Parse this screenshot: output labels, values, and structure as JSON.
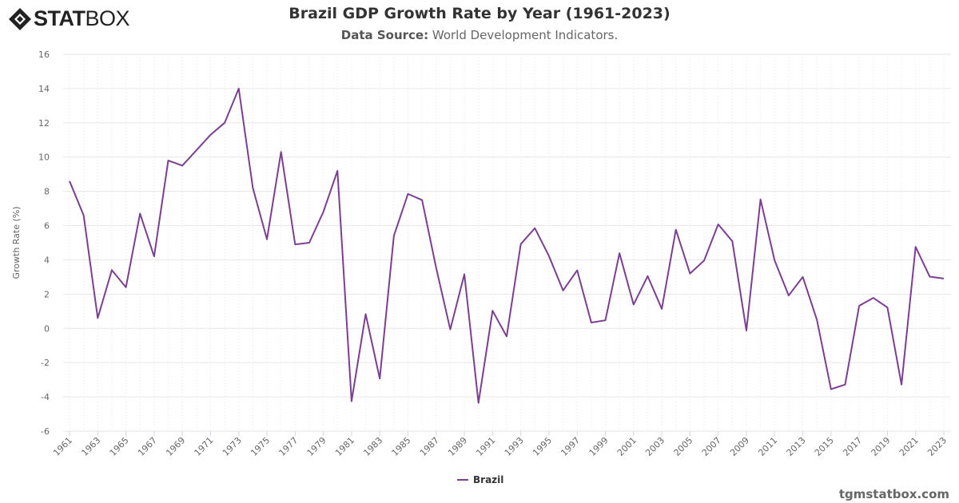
{
  "logo": {
    "text_bold": "STAT",
    "text_light": "BOX"
  },
  "title": "Brazil GDP Growth Rate by Year (1961-2023)",
  "subtitle_label": "Data Source:",
  "subtitle_value": "World Development Indicators.",
  "footer": "tgmstatbox.com",
  "colors": {
    "series": "#7b3f91",
    "grid": "#e6e6e6"
  },
  "chart_data": {
    "type": "line",
    "title": "Brazil GDP Growth Rate by Year (1961-2023)",
    "xlabel": "",
    "ylabel": "Growth Rate (%)",
    "ylim": [
      -6,
      16
    ],
    "yticks": [
      -6,
      -4,
      -2,
      0,
      2,
      4,
      6,
      8,
      10,
      12,
      14,
      16
    ],
    "xlim": [
      1961,
      2023
    ],
    "xtick_step": 2,
    "grid": true,
    "legend": "bottom-center",
    "series": [
      {
        "name": "Brazil",
        "x": [
          1961,
          1962,
          1963,
          1964,
          1965,
          1966,
          1967,
          1968,
          1969,
          1970,
          1971,
          1972,
          1973,
          1974,
          1975,
          1976,
          1977,
          1978,
          1979,
          1980,
          1981,
          1982,
          1983,
          1984,
          1985,
          1986,
          1987,
          1988,
          1989,
          1990,
          1991,
          1992,
          1993,
          1994,
          1995,
          1996,
          1997,
          1998,
          1999,
          2000,
          2001,
          2002,
          2003,
          2004,
          2005,
          2006,
          2007,
          2008,
          2009,
          2010,
          2011,
          2012,
          2013,
          2014,
          2015,
          2016,
          2017,
          2018,
          2019,
          2020,
          2021,
          2022,
          2023
        ],
        "values": [
          8.6,
          6.6,
          0.6,
          3.4,
          2.4,
          6.7,
          4.2,
          9.8,
          9.5,
          10.4,
          11.3,
          12.0,
          14.0,
          8.2,
          5.2,
          10.3,
          4.9,
          5.0,
          6.8,
          9.2,
          -4.25,
          0.83,
          -2.93,
          5.4,
          7.85,
          7.49,
          3.53,
          -0.06,
          3.16,
          -4.35,
          1.03,
          -0.47,
          4.92,
          5.85,
          4.22,
          2.21,
          3.39,
          0.34,
          0.47,
          4.39,
          1.39,
          3.05,
          1.14,
          5.76,
          3.2,
          3.96,
          6.07,
          5.09,
          -0.13,
          7.53,
          3.97,
          1.92,
          3.0,
          0.5,
          -3.55,
          -3.28,
          1.32,
          1.78,
          1.22,
          -3.28,
          4.76,
          3.02,
          2.91
        ]
      }
    ]
  }
}
